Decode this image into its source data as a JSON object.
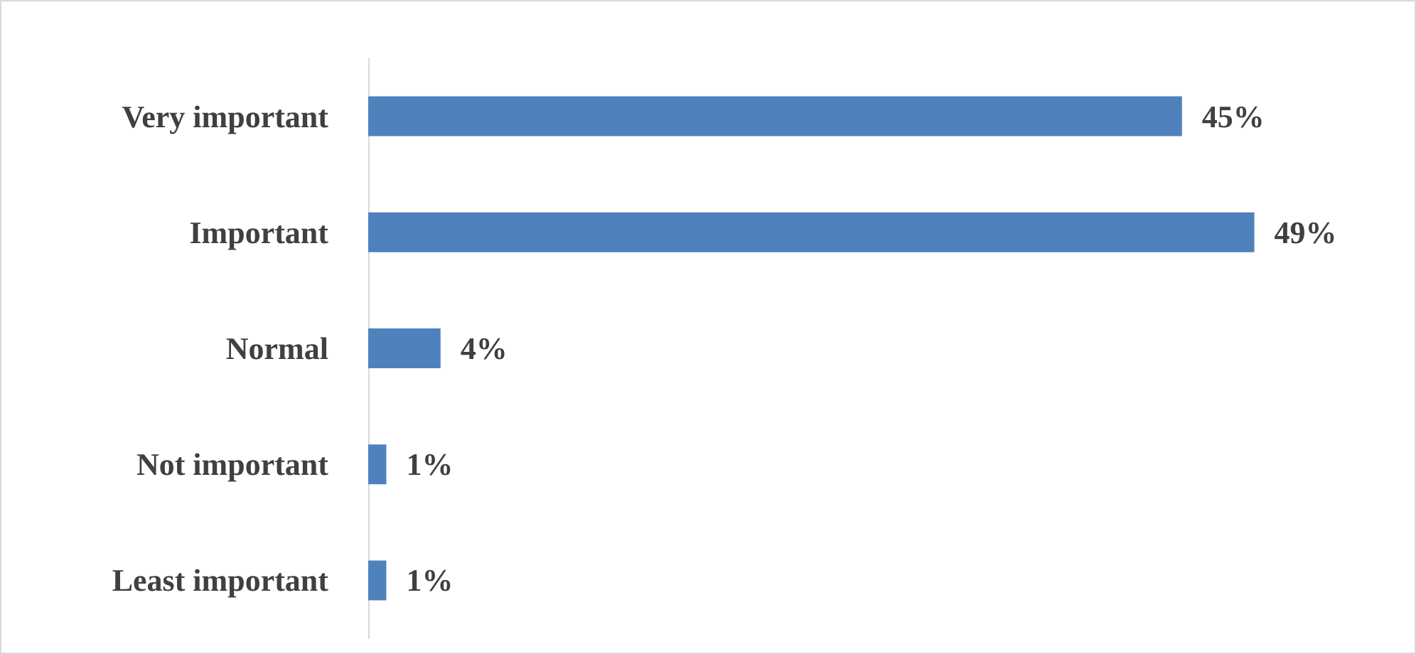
{
  "chart_data": {
    "type": "bar",
    "orientation": "horizontal",
    "categories": [
      "Very important",
      "Important",
      "Normal",
      "Not important",
      "Least important"
    ],
    "values": [
      45,
      49,
      4,
      1,
      1
    ],
    "value_labels": [
      "45%",
      "49%",
      "4%",
      "1%",
      "1%"
    ],
    "color": "#4f81bd"
  }
}
